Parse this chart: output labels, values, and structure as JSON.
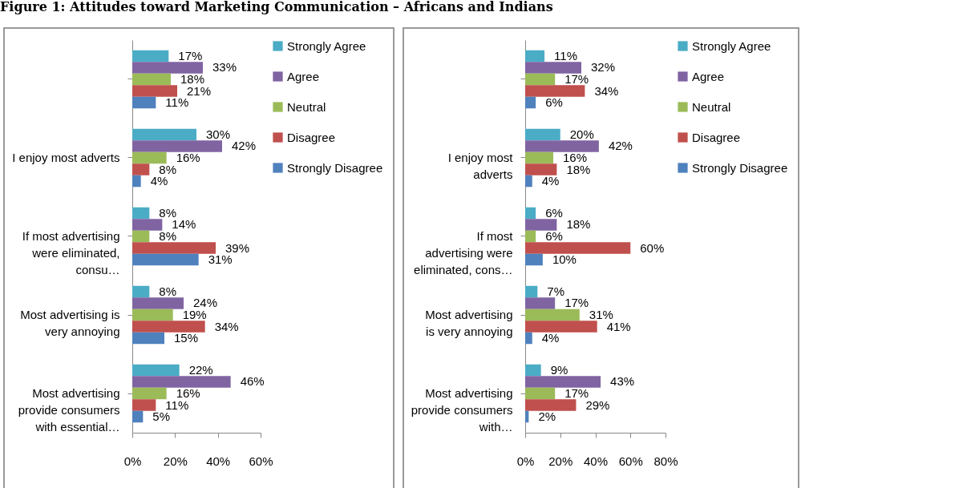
{
  "chart_data": [
    {
      "type": "bar",
      "orientation": "horizontal",
      "title": "Figure 1: Attitudes toward Marketing Communication – Africans and Indians",
      "categories": [
        null,
        "I enjoy most adverts",
        "If most advertising were eliminated, consu…",
        "Most advertising is very annoying",
        "Most advertising provide consumers with essential…"
      ],
      "series": [
        {
          "name": "Strongly Agree",
          "color": "#4bacc6",
          "values": [
            17,
            30,
            8,
            8,
            22
          ],
          "value_labels": [
            "17%",
            "30%",
            "8%",
            "8%",
            "22%"
          ]
        },
        {
          "name": "Agree",
          "color": "#8064a2",
          "values": [
            33,
            42,
            14,
            24,
            46
          ],
          "value_labels": [
            "33%",
            "42%",
            "14%",
            "24%",
            "46%"
          ]
        },
        {
          "name": "Neutral",
          "color": "#9bbb59",
          "values": [
            18,
            16,
            8,
            19,
            16
          ],
          "value_labels": [
            "18%",
            "16%",
            "8%",
            "19%",
            "16%"
          ]
        },
        {
          "name": "Disagree",
          "color": "#c0504d",
          "values": [
            21,
            8,
            39,
            34,
            11
          ],
          "value_labels": [
            "21%",
            "8%",
            "39%",
            "34%",
            "11%"
          ]
        },
        {
          "name": "Strongly Disagree",
          "color": "#4f81bd",
          "values": [
            11,
            4,
            31,
            15,
            5
          ],
          "value_labels": [
            "11%",
            "4%",
            "31%",
            "15%",
            "5%"
          ]
        }
      ],
      "xlim": [
        0,
        60
      ],
      "xticks": [
        {
          "value": 0,
          "label": "0%"
        },
        {
          "value": 20,
          "label": "20%"
        },
        {
          "value": 40,
          "label": "40%"
        },
        {
          "value": 60,
          "label": "60%"
        }
      ],
      "legend": "right"
    },
    {
      "type": "bar",
      "orientation": "horizontal",
      "categories": [
        null,
        "I enjoy most adverts",
        "If most advertising were eliminated, cons…",
        "Most advertising is very annoying",
        "Most advertising provide consumers with…"
      ],
      "series": [
        {
          "name": "Strongly Agree",
          "color": "#4bacc6",
          "values": [
            11,
            20,
            6,
            7,
            9
          ],
          "value_labels": [
            "11%",
            "20%",
            "6%",
            "7%",
            "9%"
          ]
        },
        {
          "name": "Agree",
          "color": "#8064a2",
          "values": [
            32,
            42,
            18,
            17,
            43
          ],
          "value_labels": [
            "32%",
            "42%",
            "18%",
            "17%",
            "43%"
          ]
        },
        {
          "name": "Neutral",
          "color": "#9bbb59",
          "values": [
            17,
            16,
            6,
            31,
            17
          ],
          "value_labels": [
            "17%",
            "16%",
            "6%",
            "31%",
            "17%"
          ]
        },
        {
          "name": "Disagree",
          "color": "#c0504d",
          "values": [
            34,
            18,
            60,
            41,
            29
          ],
          "value_labels": [
            "34%",
            "18%",
            "60%",
            "41%",
            "29%"
          ]
        },
        {
          "name": "Strongly Disagree",
          "color": "#4f81bd",
          "values": [
            6,
            4,
            10,
            4,
            2
          ],
          "value_labels": [
            "6%",
            "4%",
            "10%",
            "4%",
            "2%"
          ]
        }
      ],
      "xlim": [
        0,
        80
      ],
      "xticks": [
        {
          "value": 0,
          "label": "0%"
        },
        {
          "value": 20,
          "label": "20%"
        },
        {
          "value": 40,
          "label": "40%"
        },
        {
          "value": 60,
          "label": "60%"
        },
        {
          "value": 80,
          "label": "80%"
        }
      ],
      "legend": "right"
    }
  ]
}
